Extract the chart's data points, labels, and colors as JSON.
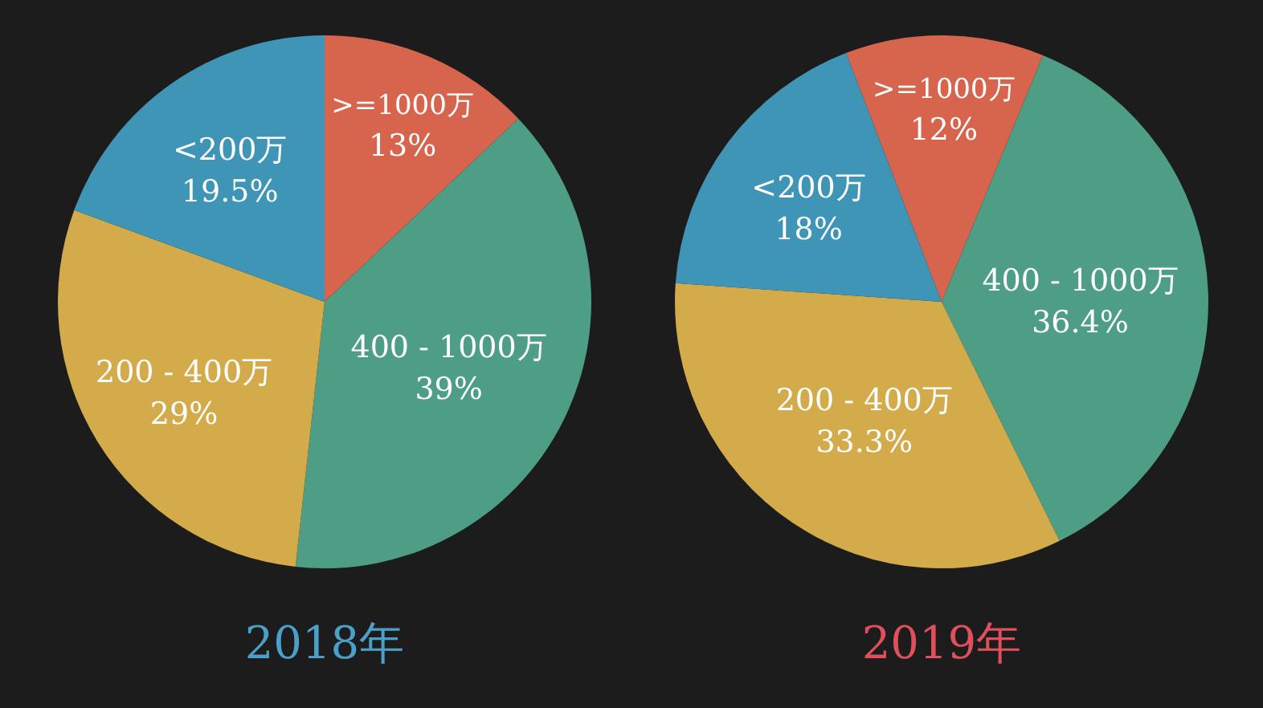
{
  "chart_data": [
    {
      "type": "pie",
      "title": "2018年",
      "categories": [
        ">=1000万",
        "400 - 1000万",
        "200 - 400万",
        "<200万"
      ],
      "values": [
        13,
        39,
        29,
        19.5
      ],
      "colors": [
        "#d7654d",
        "#4e9d85",
        "#d3ab4b",
        "#3f95b6"
      ],
      "value_labels": [
        "13%",
        "39%",
        "29%",
        "19.5%"
      ]
    },
    {
      "type": "pie",
      "title": "2019年",
      "categories": [
        ">=1000万",
        "400 - 1000万",
        "200 - 400万",
        "<200万"
      ],
      "values": [
        12,
        36.4,
        33.3,
        18
      ],
      "colors": [
        "#d7654d",
        "#4e9d85",
        "#d3ab4b",
        "#3f95b6"
      ],
      "value_labels": [
        "12%",
        "36.4%",
        "33.3%",
        "18%"
      ]
    }
  ]
}
